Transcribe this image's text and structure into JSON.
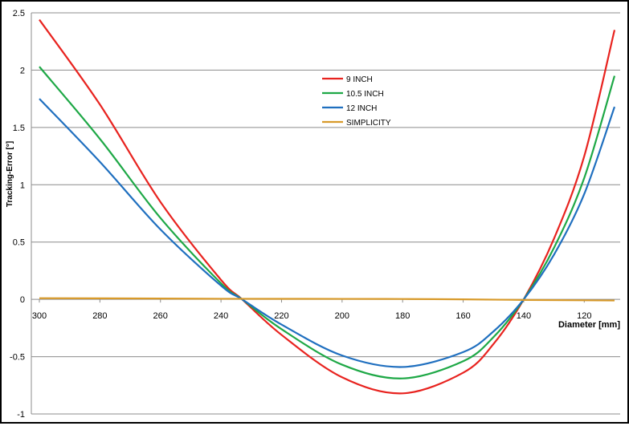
{
  "chart_data": {
    "type": "line",
    "xlabel": "Diameter [mm]",
    "ylabel": "Tracking-Error  [°]",
    "xlim": [
      300,
      110
    ],
    "ylim": [
      -1,
      2.5
    ],
    "x_ticks": [
      "300",
      "280",
      "260",
      "240",
      "220",
      "200",
      "180",
      "160",
      "140",
      "120"
    ],
    "y_ticks": [
      "-1",
      "-0.5",
      "0",
      "0.5",
      "1",
      "1.5",
      "2",
      "2.5"
    ],
    "x_axis_reversed": true,
    "grid": "horizontal",
    "legend_position": "top-center",
    "series": [
      {
        "name": "9 INCH",
        "color": "#e8231f",
        "points": [
          [
            300,
            2.44
          ],
          [
            280,
            1.7
          ],
          [
            260,
            0.85
          ],
          [
            240,
            0.17
          ],
          [
            233,
            0
          ],
          [
            220,
            -0.31
          ],
          [
            200,
            -0.68
          ],
          [
            180,
            -0.82
          ],
          [
            160,
            -0.64
          ],
          [
            150,
            -0.39
          ],
          [
            140,
            0
          ],
          [
            130,
            0.53
          ],
          [
            120,
            1.25
          ],
          [
            110,
            2.35
          ]
        ]
      },
      {
        "name": "10.5 INCH",
        "color": "#1ea846",
        "points": [
          [
            300,
            2.03
          ],
          [
            280,
            1.4
          ],
          [
            260,
            0.71
          ],
          [
            240,
            0.14
          ],
          [
            233,
            0
          ],
          [
            220,
            -0.26
          ],
          [
            200,
            -0.57
          ],
          [
            180,
            -0.69
          ],
          [
            160,
            -0.54
          ],
          [
            150,
            -0.33
          ],
          [
            140,
            0
          ],
          [
            130,
            0.45
          ],
          [
            120,
            1.06
          ],
          [
            110,
            1.95
          ]
        ]
      },
      {
        "name": "12 INCH",
        "color": "#1f6fbf",
        "points": [
          [
            300,
            1.75
          ],
          [
            280,
            1.2
          ],
          [
            260,
            0.61
          ],
          [
            240,
            0.12
          ],
          [
            233,
            0
          ],
          [
            220,
            -0.22
          ],
          [
            200,
            -0.49
          ],
          [
            180,
            -0.59
          ],
          [
            160,
            -0.46
          ],
          [
            150,
            -0.28
          ],
          [
            140,
            0
          ],
          [
            130,
            0.39
          ],
          [
            120,
            0.92
          ],
          [
            110,
            1.68
          ]
        ]
      },
      {
        "name": "SIMPLICITY",
        "color": "#d89a2a",
        "points": [
          [
            300,
            0.01
          ],
          [
            270,
            0.008
          ],
          [
            240,
            0.005
          ],
          [
            200,
            0.004
          ],
          [
            180,
            0.003
          ],
          [
            160,
            0.0
          ],
          [
            140,
            -0.005
          ],
          [
            120,
            -0.008
          ],
          [
            110,
            -0.01
          ]
        ]
      }
    ]
  }
}
